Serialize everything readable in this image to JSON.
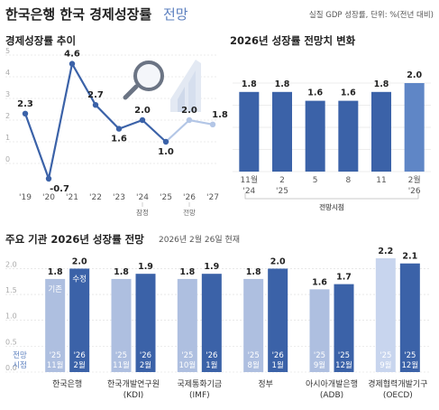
{
  "header": {
    "title": "한국은행 한국 경제성장률",
    "title_suffix": "전망",
    "note": "실질 GDP 성장률, 단위: %(전년 대비)"
  },
  "colors": {
    "line_dark": "#3b62a8",
    "line_light": "#b3c6e6",
    "bar_dark": "#3b62a8",
    "bar_light": "#aebfe0",
    "bar_mid": "#5f86c6",
    "bar_pale": "#c8d5ee",
    "accent": "#5b7fbf"
  },
  "icons": [
    "magnifier-icon",
    "bar-chart-icon"
  ],
  "chart_data": [
    {
      "type": "line",
      "title": "경제성장률 추이",
      "x": [
        "'19",
        "'20",
        "'21",
        "'22",
        "'23",
        "'24",
        "'25",
        "'26",
        "'27"
      ],
      "series": [
        {
          "values": [
            2.3,
            -0.7,
            4.6,
            2.7,
            1.6,
            2.0,
            1.0,
            2.0,
            1.8
          ]
        }
      ],
      "actual_until": "'25",
      "tick_tags": [
        {
          "x": "'24",
          "label": "잠정"
        },
        {
          "x": "'26",
          "label": "전망"
        }
      ],
      "y_ticks": [
        0,
        1,
        2,
        3,
        4,
        5
      ],
      "ylim": [
        -1,
        5
      ],
      "grid": true
    },
    {
      "type": "bar",
      "title": "2026년 성장률 전망치 변화",
      "categories": [
        "11월 '24",
        "2 '25",
        "5",
        "8",
        "11",
        "2월 '26"
      ],
      "values": [
        1.8,
        1.8,
        1.6,
        1.6,
        1.8,
        2.0
      ],
      "x_group_label": "전망시점",
      "y_ticks": [
        0,
        0.5,
        1.0,
        1.5,
        2.0
      ],
      "ylim": [
        0,
        2.0
      ],
      "grid": true
    },
    {
      "type": "bar",
      "title": "주요 기관 2026년 성장률 전망",
      "date_note": "2026년 2월 26일 현재",
      "categories": [
        "한국은행",
        "한국개발연구원 (KDI)",
        "국제통화기금 (IMF)",
        "정부",
        "아시아개발은행 (ADB)",
        "경제협력개발기구 (OECD)"
      ],
      "series": [
        {
          "name": "기존",
          "values": [
            1.8,
            1.8,
            1.8,
            1.8,
            1.6,
            2.2
          ],
          "timing": [
            "'25 11월",
            "'25 11월",
            "'25 10월",
            "'25 8월",
            "'25 9월",
            "'25 9월"
          ]
        },
        {
          "name": "수정",
          "values": [
            2.0,
            1.9,
            1.9,
            2.0,
            1.7,
            2.1
          ],
          "timing": [
            "'26 2월",
            "'26 2월",
            "'26 1월",
            "'26 1월",
            "'25 12월",
            "'25 12월"
          ]
        }
      ],
      "timing_label": "전망 시점",
      "y_ticks": [
        0,
        0.5,
        1.0,
        1.5,
        2.0
      ],
      "ylim": [
        0,
        2.2
      ],
      "grid": true
    }
  ]
}
